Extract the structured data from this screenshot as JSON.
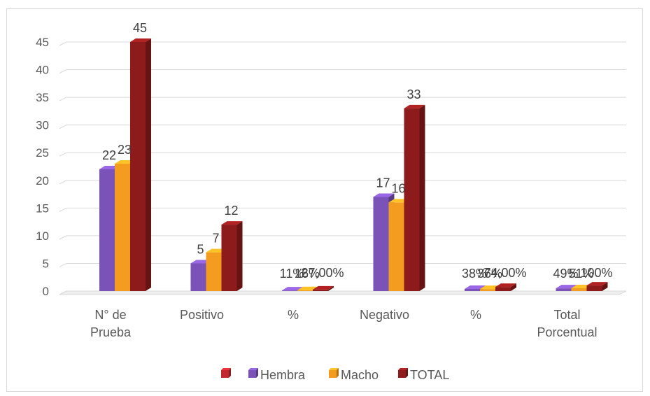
{
  "chart_data": {
    "type": "bar",
    "style": "3d-clustered-column",
    "title": "",
    "xlabel": "",
    "ylabel": "",
    "ylim": [
      0,
      45
    ],
    "yticks": [
      0,
      5,
      10,
      15,
      20,
      25,
      30,
      35,
      40,
      45
    ],
    "grid": true,
    "legend_position": "bottom",
    "categories": [
      "N° de\nPrueba",
      "Positivo",
      "%",
      "Negativo",
      "%",
      "Total\nPorcentual"
    ],
    "legend_extra_entry": {
      "name": "",
      "color": "#c0282e"
    },
    "series": [
      {
        "name": "Hembra",
        "color": "#7b52b8",
        "values": [
          22,
          5,
          0.11,
          17,
          0.38,
          0.49
        ],
        "labels": [
          "22",
          "5",
          "11%",
          "17",
          "38%",
          "49%"
        ]
      },
      {
        "name": "Macho",
        "color": "#f39c1f",
        "values": [
          23,
          7,
          0.16,
          16,
          0.36,
          0.51
        ],
        "labels": [
          "23",
          "7",
          "16%",
          "16",
          "36%",
          "51%"
        ]
      },
      {
        "name": "TOTAL",
        "color": "#8e1b1b",
        "values": [
          45,
          12,
          0.27,
          33,
          0.74,
          1.0
        ],
        "labels": [
          "45",
          "12",
          "27,00%",
          "33",
          "74,00%",
          "100%"
        ]
      }
    ]
  }
}
